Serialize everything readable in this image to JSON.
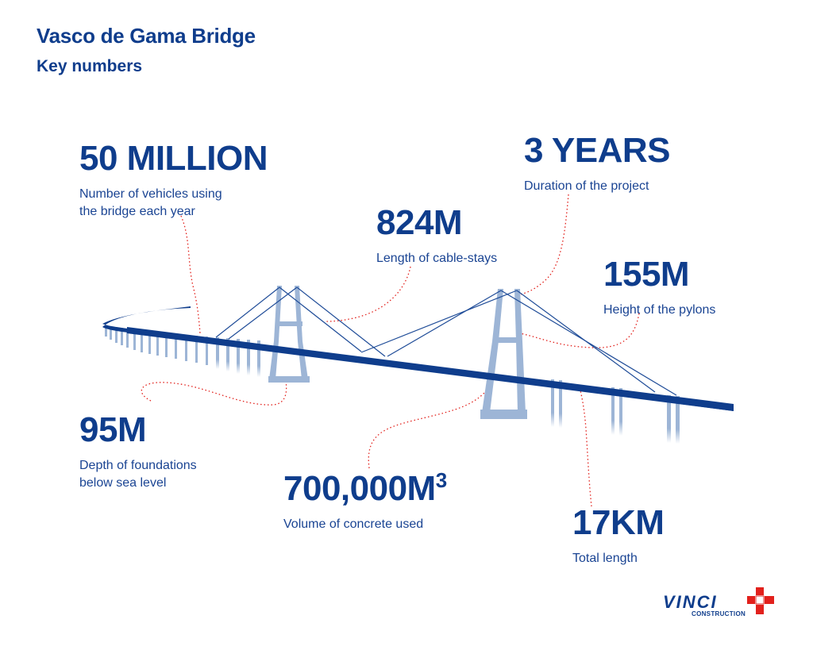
{
  "header": {
    "title": "Vasco de Gama Bridge",
    "subtitle": "Key numbers"
  },
  "stats": {
    "vehicles": {
      "value": "50 MILLION",
      "label_line1": "Number of vehicles using",
      "label_line2": "the bridge each year"
    },
    "duration": {
      "value": "3 YEARS",
      "label": "Duration of the project"
    },
    "cables": {
      "value": "824M",
      "label": "Length of cable-stays"
    },
    "pylons": {
      "value": "155M",
      "label": "Height of the pylons"
    },
    "foundations": {
      "value": "95M",
      "label_line1": "Depth of foundations",
      "label_line2": "below sea level"
    },
    "concrete": {
      "value": "700,000M",
      "superscript": "3",
      "label": "Volume of concrete used"
    },
    "length": {
      "value": "17KM",
      "label": "Total length"
    }
  },
  "logo": {
    "wordmark": "VINCI",
    "tagline": "CONSTRUCTION",
    "brand_color": "#0f3d8c",
    "accent_color": "#e2211c"
  },
  "colors": {
    "primary": "#0f3d8c",
    "pylon": "#9db5d6",
    "cable": "#1f4c98",
    "leader_line": "#e2211c"
  }
}
